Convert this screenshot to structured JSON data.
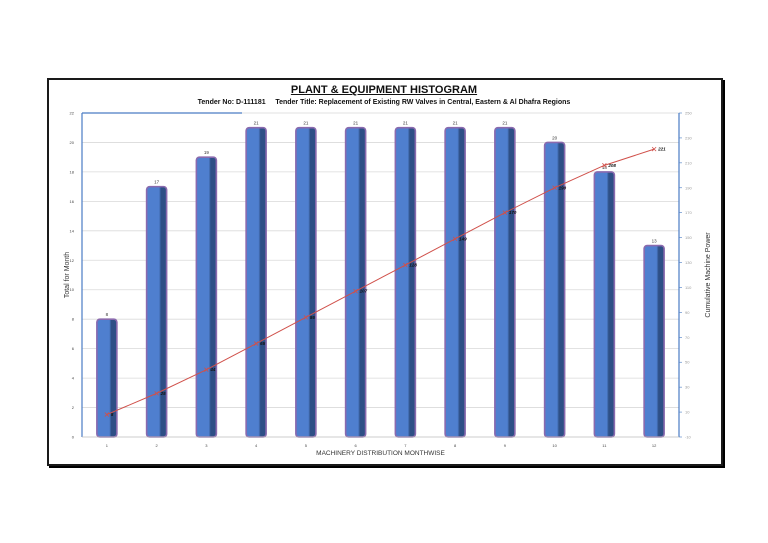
{
  "header": {
    "title": "PLANT & EQUIPMENT  HISTOGRAM",
    "subtitle": "Tender No: D-111181     Tender Title: Replacement of Existing RW Valves in Central, Eastern & Al Dhafra Regions"
  },
  "colors": {
    "bar_fill": "#4f7fcf",
    "bar_shade": "#2e4f86",
    "bar_border": "#8a6aae",
    "line": "#d0504a",
    "axis": "#4a7cc4",
    "grid": "#d9d9d9"
  },
  "chart_data": {
    "type": "bar",
    "title": "PLANT & EQUIPMENT  HISTOGRAM",
    "subtitle": "Tender No: D-111181     Tender Title: Replacement of Existing RW Valves in Central, Eastern & Al Dhafra Regions",
    "xlabel": "MACHINERY DISTRIBUTION MONTHWISE",
    "ylabel": "Total for Month",
    "y2label": "Cumulative Machine Power",
    "categories": [
      "1",
      "2",
      "3",
      "4",
      "5",
      "6",
      "7",
      "8",
      "9",
      "10",
      "11",
      "12"
    ],
    "series": [
      {
        "name": "Total for Month",
        "type": "bar",
        "axis": "left",
        "values": [
          8,
          17,
          19,
          21,
          21,
          21,
          21,
          21,
          21,
          20,
          18,
          13
        ]
      },
      {
        "name": "Cumulative Machine Power",
        "type": "line",
        "axis": "right",
        "values": [
          8,
          25,
          44,
          65,
          86,
          107,
          128,
          149,
          170,
          190,
          208,
          221
        ]
      }
    ],
    "ylim": [
      0,
      22
    ],
    "yticks": [
      0,
      2,
      4,
      6,
      8,
      10,
      12,
      14,
      16,
      18,
      20,
      22
    ],
    "y2lim": [
      -10,
      250
    ],
    "y2ticks": [
      -10,
      10,
      30,
      50,
      70,
      90,
      110,
      130,
      150,
      170,
      190,
      210,
      230,
      250
    ],
    "grid": true,
    "legend": "none"
  }
}
